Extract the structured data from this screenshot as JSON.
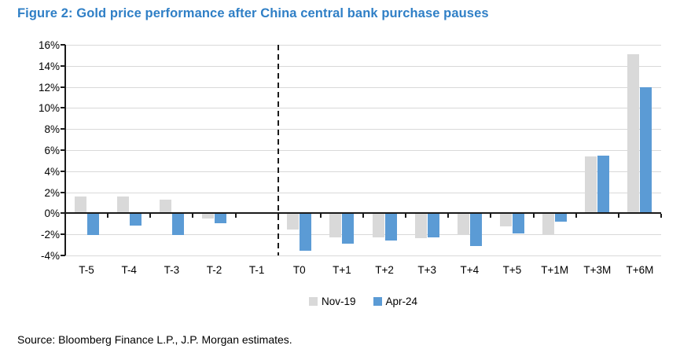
{
  "title": "Figure 2: Gold price performance after China central bank purchase pauses",
  "source": "Source: Bloomberg Finance L.P., J.P. Morgan estimates.",
  "colors": {
    "title_blue": "#2f7fc6",
    "nov19_gray": "#d9d9d9",
    "apr24_blue": "#5b9bd5",
    "gridline": "#d9d9d9",
    "axis": "#1a1a1a"
  },
  "chart_data": {
    "type": "bar",
    "title": "Figure 2: Gold price performance after China central bank purchase pauses",
    "categories": [
      "T-5",
      "T-4",
      "T-3",
      "T-2",
      "T-1",
      "T0",
      "T+1",
      "T+2",
      "T+3",
      "T+4",
      "T+5",
      "T+1M",
      "T+3M",
      "T+6M"
    ],
    "series": [
      {
        "name": "Nov-19",
        "color": "#d9d9d9",
        "values": [
          1.6,
          1.6,
          1.3,
          -0.4,
          0.0,
          -1.5,
          -2.2,
          -2.2,
          -2.3,
          -1.9,
          -1.2,
          -2.0,
          5.4,
          15.1
        ]
      },
      {
        "name": "Apr-24",
        "color": "#5b9bd5",
        "values": [
          -2.0,
          -1.1,
          -2.0,
          -0.9,
          0.0,
          -3.5,
          -2.8,
          -2.5,
          -2.2,
          -3.0,
          -1.8,
          -0.7,
          5.5,
          12.0
        ]
      }
    ],
    "xlabel": "",
    "ylabel": "",
    "ylim": [
      -4,
      16
    ],
    "yticks": [
      16,
      14,
      12,
      10,
      8,
      6,
      4,
      2,
      0,
      -2,
      -4
    ],
    "ytick_suffix": "%",
    "grid": true,
    "legend_position": "bottom-center",
    "annotations": [
      {
        "type": "vline",
        "style": "dashed",
        "between": [
          "T-1",
          "T0"
        ],
        "meaning": "pause event date T0"
      }
    ]
  }
}
